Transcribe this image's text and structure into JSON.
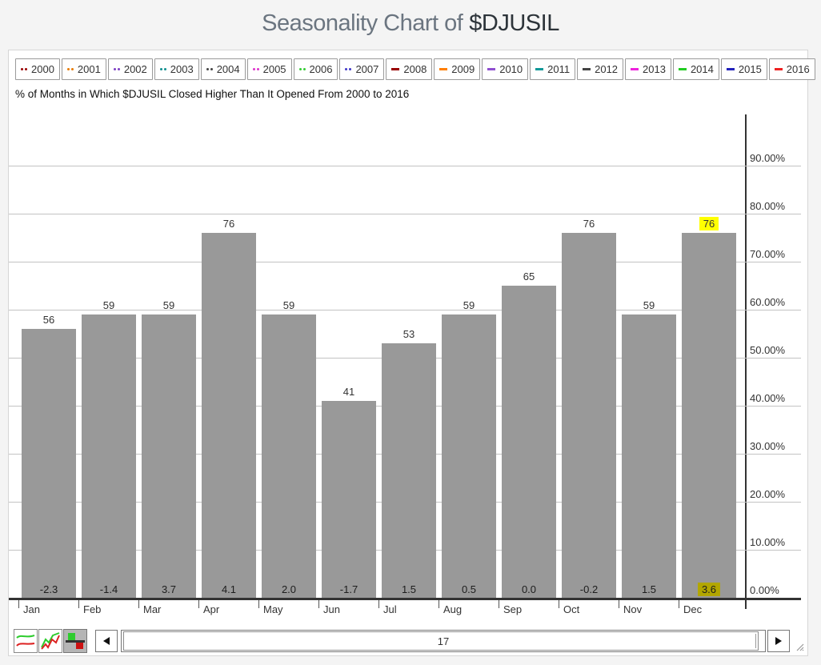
{
  "title": {
    "prefix": "Seasonality Chart of",
    "symbol": "$DJUSIL"
  },
  "legend": {
    "years": [
      {
        "label": "2000",
        "color": "#990000",
        "style": "dotted"
      },
      {
        "label": "2001",
        "color": "#e87a00",
        "style": "dotted"
      },
      {
        "label": "2002",
        "color": "#7d3fc4",
        "style": "dotted"
      },
      {
        "label": "2003",
        "color": "#0f8f8f",
        "style": "dotted"
      },
      {
        "label": "2004",
        "color": "#444444",
        "style": "dotted"
      },
      {
        "label": "2005",
        "color": "#dd33cc",
        "style": "dotted"
      },
      {
        "label": "2006",
        "color": "#33cc33",
        "style": "dotted"
      },
      {
        "label": "2007",
        "color": "#4038c8",
        "style": "dotted"
      },
      {
        "label": "2008",
        "color": "#990000",
        "style": "solid"
      },
      {
        "label": "2009",
        "color": "#ff7f00",
        "style": "solid"
      },
      {
        "label": "2010",
        "color": "#8f4fd0",
        "style": "solid"
      },
      {
        "label": "2011",
        "color": "#119999",
        "style": "solid"
      },
      {
        "label": "2012",
        "color": "#444444",
        "style": "solid"
      },
      {
        "label": "2013",
        "color": "#ee22dd",
        "style": "solid"
      },
      {
        "label": "2014",
        "color": "#22cc22",
        "style": "solid"
      },
      {
        "label": "2015",
        "color": "#2222bb",
        "style": "solid"
      },
      {
        "label": "2016",
        "color": "#ee2222",
        "style": "solid"
      }
    ]
  },
  "chart_data": {
    "type": "bar",
    "title": "% of Months in Which $DJUSIL Closed Higher Than It Opened From 2000 to 2016",
    "categories": [
      "Jan",
      "Feb",
      "Mar",
      "Apr",
      "May",
      "Jun",
      "Jul",
      "Aug",
      "Sep",
      "Oct",
      "Nov",
      "Dec"
    ],
    "values": [
      56,
      59,
      59,
      76,
      59,
      41,
      53,
      59,
      65,
      76,
      59,
      76
    ],
    "bottom_values": [
      "-2.3",
      "-1.4",
      "3.7",
      "4.1",
      "2.0",
      "-1.7",
      "1.5",
      "0.5",
      "0.0",
      "-0.2",
      "1.5",
      "3.6"
    ],
    "highlight_index": 11,
    "ylim": [
      0,
      100
    ],
    "y_ticks": [
      0,
      10,
      20,
      30,
      40,
      50,
      60,
      70,
      80,
      90
    ],
    "y_tick_labels": [
      "0.00%",
      "10.00%",
      "20.00%",
      "30.00%",
      "40.00%",
      "50.00%",
      "60.00%",
      "70.00%",
      "80.00%",
      "90.00%"
    ],
    "grid": true,
    "legend_position": "top",
    "axis_side": "right",
    "bar_color": "#999999",
    "highlight_top_bg": "#ffff00",
    "highlight_bottom_bg": "#b2a600"
  },
  "toolbar": {
    "scroll_value": "17",
    "buttons": [
      {
        "name": "line-mode-button",
        "icon": "dual-line-chart-icon",
        "selected": false
      },
      {
        "name": "zigzag-mode-button",
        "icon": "zigzag-chart-icon",
        "selected": false
      },
      {
        "name": "bar-mode-button",
        "icon": "bar-chart-icon",
        "selected": true
      }
    ],
    "icons": [
      "scroll-left-icon",
      "scroll-right-icon",
      "resize-grip-icon"
    ]
  }
}
